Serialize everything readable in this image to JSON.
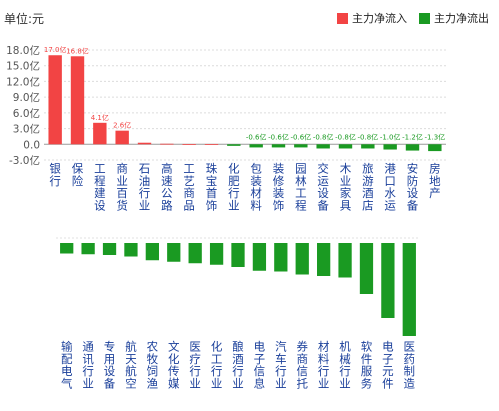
{
  "unit_label": "单位:元",
  "legend": [
    {
      "label": "主力净流入",
      "color": "#f24444"
    },
    {
      "label": "主力净流出",
      "color": "#1a9a22"
    }
  ],
  "chart_data": [
    {
      "type": "bar",
      "title": "",
      "xlabel": "",
      "ylabel": "",
      "ylim": [
        -3.0,
        18.0
      ],
      "yticks": [
        "18.0亿",
        "15.0亿",
        "12.0亿",
        "9.0亿",
        "6.0亿",
        "3.0亿",
        "0.0",
        "-3.0亿"
      ],
      "ytick_values": [
        18,
        15,
        12,
        9,
        6,
        3,
        0,
        -3
      ],
      "grid": true,
      "categories": [
        "银行",
        "保险",
        "工程建设",
        "商业百货",
        "石油行业",
        "高速公路",
        "工艺商品",
        "珠宝首饰",
        "化肥行业",
        "包装材料",
        "装修装饰",
        "园林工程",
        "交运设备",
        "木业家具",
        "旅游酒店",
        "港口水运",
        "安防设备",
        "房地产"
      ],
      "values": [
        17.0,
        16.8,
        4.1,
        2.6,
        0.3,
        0.1,
        0.05,
        0.05,
        -0.3,
        -0.6,
        -0.6,
        -0.6,
        -0.8,
        -0.8,
        -0.8,
        -1.0,
        -1.2,
        -1.3
      ],
      "data_labels": [
        "17.0亿",
        "16.8亿",
        "4.1亿",
        "2.6亿",
        "",
        "",
        "",
        "",
        "",
        "-0.6亿",
        "-0.6亿",
        "-0.6亿",
        "-0.8亿",
        "-0.8亿",
        "-0.8亿",
        "-1.0亿",
        "-1.2亿",
        "-1.3亿"
      ]
    },
    {
      "type": "bar",
      "title": "",
      "unit": "亿",
      "categories": [
        "输配电气",
        "通讯行业",
        "专用设备",
        "航天航空",
        "农牧饲渔",
        "文化传媒",
        "医疗行业",
        "化工行业",
        "酿酒行业",
        "电子信息",
        "汽车行业",
        "券商信托",
        "材料行业",
        "机械行业",
        "软件服务",
        "电子元件",
        "医药制造"
      ],
      "values": [
        -1.4,
        -1.5,
        -1.6,
        -1.8,
        -2.3,
        -2.5,
        -2.7,
        -2.9,
        -3.2,
        -3.7,
        -3.8,
        -4.2,
        -4.4,
        -4.6,
        -6.8,
        -10.0,
        -12.4
      ]
    }
  ]
}
